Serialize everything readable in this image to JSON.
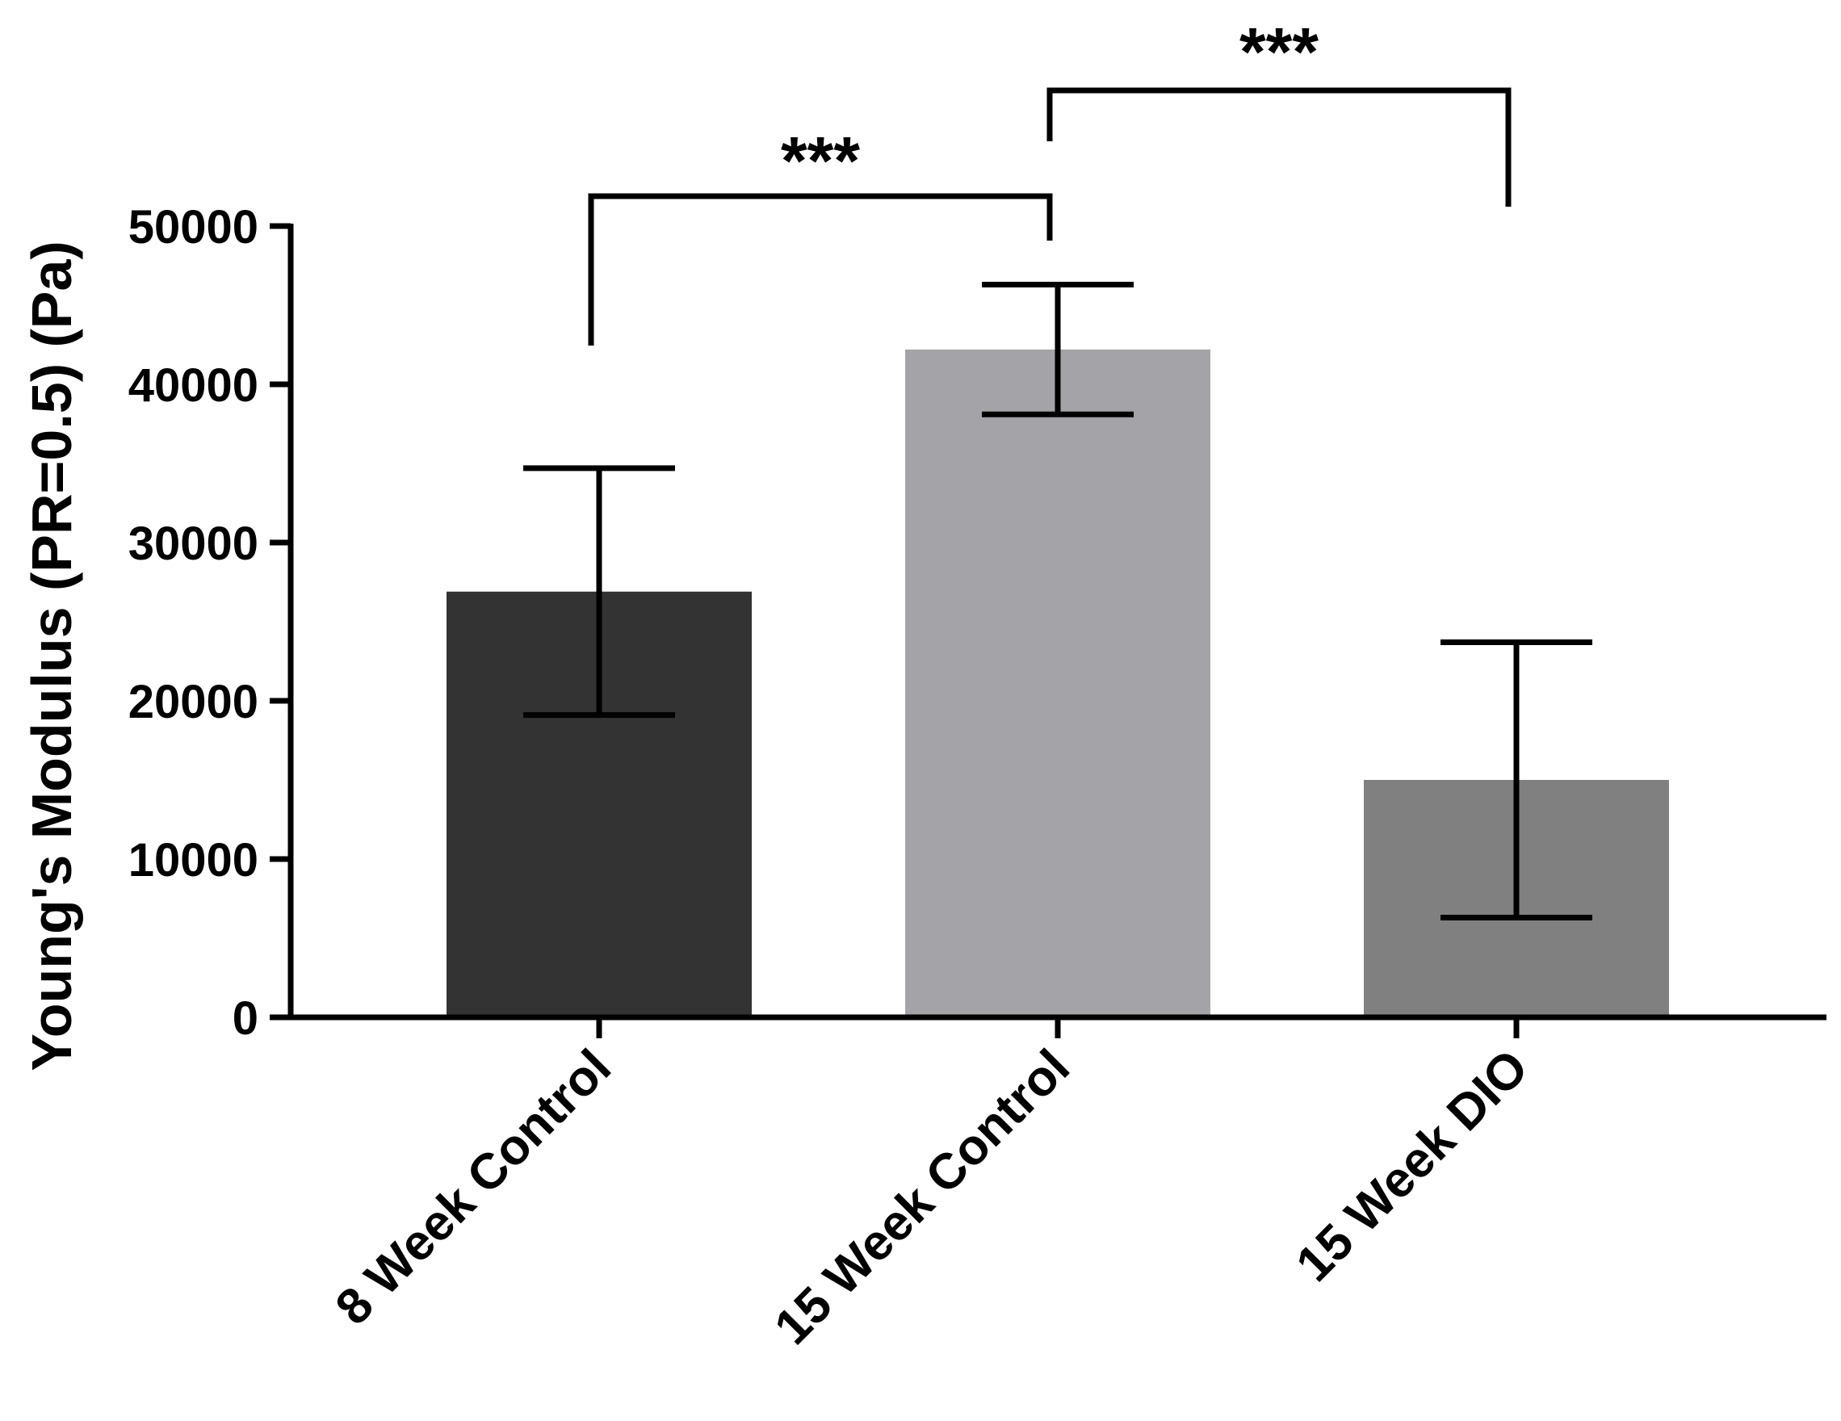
{
  "chart_data": {
    "type": "bar",
    "title": "",
    "xlabel": "",
    "ylabel": "Young's Modulus (PR=0.5) (Pa)",
    "ylim": [
      0,
      50000
    ],
    "yticks": [
      0,
      10000,
      20000,
      30000,
      40000,
      50000
    ],
    "ytick_labels": [
      "0",
      "10000",
      "20000",
      "30000",
      "40000",
      "50000"
    ],
    "categories": [
      "8 Week Control",
      "15 Week Control",
      "15 Week DIO"
    ],
    "values": [
      26900,
      42200,
      15000
    ],
    "error": [
      7800,
      4100,
      8700
    ],
    "colors": [
      "#333333",
      "#a3a3a8",
      "#808080"
    ],
    "significance": [
      {
        "from": 0,
        "to": 1,
        "label": "***"
      },
      {
        "from": 1,
        "to": 2,
        "label": "***"
      }
    ],
    "grid": false,
    "legend": "none"
  }
}
